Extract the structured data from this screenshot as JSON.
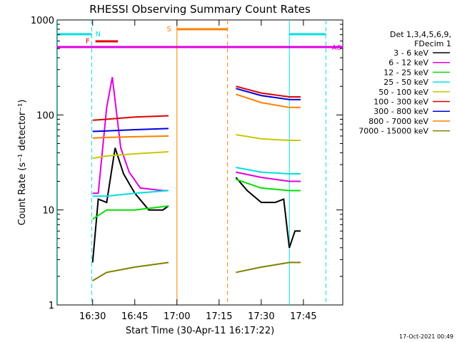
{
  "chart_data": {
    "type": "line",
    "title": "RHESSI Observing Summary Count Rates",
    "xlabel": "Start Time (30-Apr-11 16:17:22)",
    "ylabel": "Count Rate (s⁻¹ detector⁻¹)",
    "y_scale": "log",
    "ylim": [
      1,
      1000
    ],
    "xlim": [
      "16:17:22",
      "17:59:00"
    ],
    "x_ticks": [
      "16:30",
      "16:45",
      "17:00",
      "17:15",
      "17:30",
      "17:45"
    ],
    "y_ticks": [
      "1",
      "10",
      "100",
      "1000"
    ],
    "legend_header": [
      "Det 1,3,4,5,6,9,",
      "FDecim 1"
    ],
    "legend_position": "right",
    "series": [
      {
        "name": "3 - 6 keV",
        "color": "#000000",
        "x": [
          "16:22",
          "16:26",
          "16:30",
          "16:32",
          "16:35",
          "16:38",
          "16:41",
          "16:45",
          "16:50",
          "16:55",
          "16:57",
          "GAP",
          "17:21",
          "17:25",
          "17:30",
          "17:35",
          "17:38",
          "17:40",
          "17:42",
          "17:44"
        ],
        "y": [
          null,
          null,
          2.8,
          13,
          12,
          45,
          24,
          15,
          10,
          10,
          11,
          null,
          22,
          16,
          12,
          12,
          13,
          4,
          6,
          6
        ]
      },
      {
        "name": "6 - 12 keV",
        "color": "#e000e0",
        "x": [
          "16:30",
          "16:32",
          "16:35",
          "16:37",
          "16:40",
          "16:43",
          "16:47",
          "16:55",
          "16:57",
          "GAP",
          "17:21",
          "17:30",
          "17:35",
          "17:40",
          "17:44"
        ],
        "y": [
          15,
          15,
          120,
          250,
          45,
          25,
          17,
          16,
          16,
          null,
          25,
          22,
          21,
          20,
          20
        ]
      },
      {
        "name": "12 - 25 keV",
        "color": "#00e000",
        "x": [
          "16:30",
          "16:35",
          "16:45",
          "16:57",
          "GAP",
          "17:21",
          "17:30",
          "17:40",
          "17:44"
        ],
        "y": [
          8,
          10,
          10,
          11,
          null,
          21,
          17,
          16,
          16
        ]
      },
      {
        "name": "25 - 50 keV",
        "color": "#00e0e0",
        "x": [
          "16:30",
          "16:35",
          "16:45",
          "16:57",
          "GAP",
          "17:21",
          "17:30",
          "17:40",
          "17:44"
        ],
        "y": [
          14,
          14,
          15,
          16,
          null,
          28,
          25,
          24,
          24
        ]
      },
      {
        "name": "50 - 100 keV",
        "color": "#c8c800",
        "x": [
          "16:30",
          "16:35",
          "16:45",
          "16:57",
          "GAP",
          "17:21",
          "17:30",
          "17:40",
          "17:44"
        ],
        "y": [
          35,
          37,
          39,
          41,
          null,
          62,
          56,
          54,
          54
        ]
      },
      {
        "name": "100 - 300 keV",
        "color": "#e00000",
        "x": [
          "16:30",
          "16:35",
          "16:45",
          "16:57",
          "GAP",
          "17:21",
          "17:30",
          "17:40",
          "17:44"
        ],
        "y": [
          88,
          90,
          95,
          98,
          null,
          200,
          170,
          155,
          155
        ]
      },
      {
        "name": "300 - 800 keV",
        "color": "#0000e0",
        "x": [
          "16:30",
          "16:35",
          "16:45",
          "16:57",
          "GAP",
          "17:21",
          "17:30",
          "17:40",
          "17:44"
        ],
        "y": [
          67,
          68,
          70,
          72,
          null,
          190,
          160,
          145,
          145
        ]
      },
      {
        "name": "800 - 7000 keV",
        "color": "#ff8000",
        "x": [
          "16:30",
          "16:35",
          "16:45",
          "16:57",
          "GAP",
          "17:21",
          "17:30",
          "17:40",
          "17:44"
        ],
        "y": [
          57,
          58,
          59,
          60,
          null,
          165,
          135,
          120,
          120
        ]
      },
      {
        "name": "7000 - 15000 keV",
        "color": "#808000",
        "x": [
          "16:30",
          "16:35",
          "16:45",
          "16:57",
          "GAP",
          "17:21",
          "17:30",
          "17:40",
          "17:44"
        ],
        "y": [
          1.8,
          2.2,
          2.5,
          2.8,
          null,
          2.2,
          2.5,
          2.8,
          2.8
        ]
      }
    ],
    "annotations": [
      {
        "text": "N",
        "color": "#00e0e0"
      },
      {
        "text": "F",
        "color": "#e00000"
      },
      {
        "text": "S",
        "color": "#ff8000"
      },
      {
        "text": "A0",
        "color": "#e000e0"
      }
    ]
  },
  "footer_timestamp": "17-Oct-2021 00:49"
}
